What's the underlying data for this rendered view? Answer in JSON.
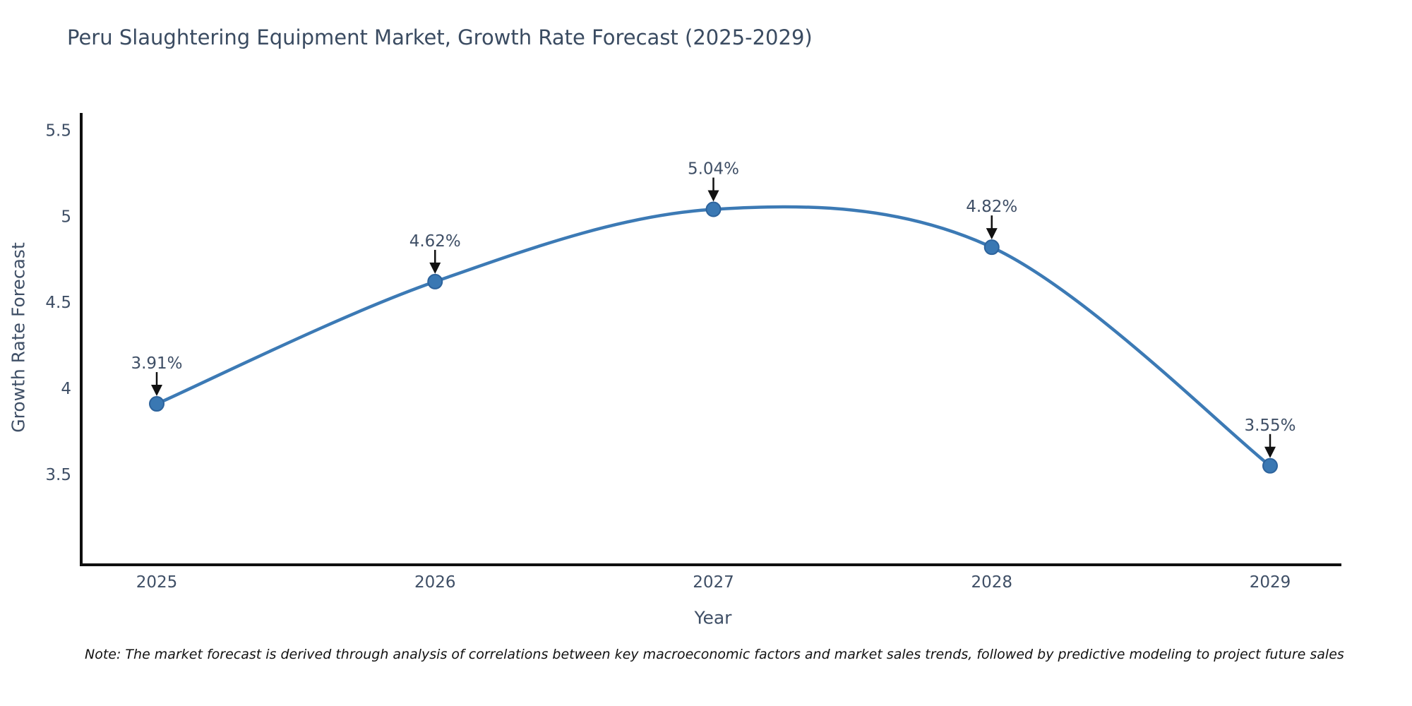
{
  "note": "Note: The market forecast is derived through analysis of correlations between key macroeconomic factors and market sales trends, followed by predictive modeling to project future sales",
  "chart_data": {
    "type": "line",
    "title": "Peru Slaughtering Equipment Market, Growth Rate Forecast (2025-2029)",
    "categories": [
      "2025",
      "2026",
      "2027",
      "2028",
      "2029"
    ],
    "values": [
      3.91,
      4.62,
      5.04,
      4.82,
      3.55
    ],
    "point_labels": [
      "3.91%",
      "4.62%",
      "5.04%",
      "4.82%",
      "3.55%"
    ],
    "xlabel": "Year",
    "ylabel": "Growth Rate Forecast",
    "yticks": [
      3.5,
      4,
      4.5,
      5,
      5.5
    ],
    "ytick_labels": [
      "3.5",
      "4",
      "4.5",
      "5",
      "5.5"
    ],
    "ylim": [
      2.975,
      5.6
    ],
    "grid": false,
    "legend": "none",
    "line_color": "#3c7ab5",
    "marker_color": "#3a78b3",
    "marker_edge_color": "#2d639c",
    "annotation_arrow_color": "#111111",
    "axis_color": "#0f0f0f",
    "text_color": "#3f4f66"
  }
}
